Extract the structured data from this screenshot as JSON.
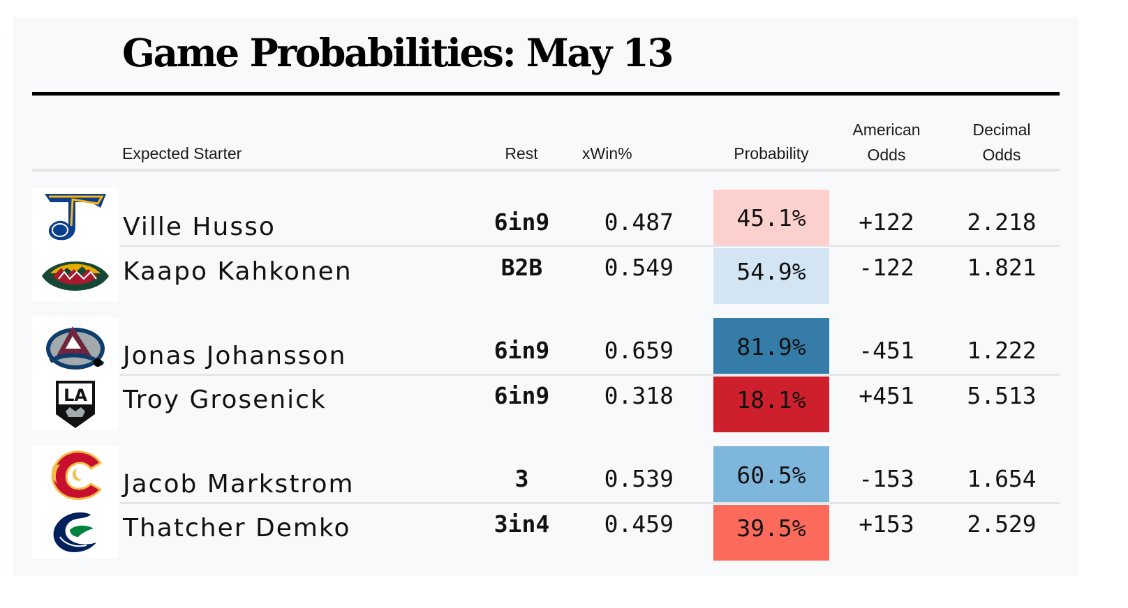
{
  "chart_data": {
    "type": "table",
    "title": "Game Probabilities: May 13",
    "columns": {
      "starter": "Expected Starter",
      "rest": "Rest",
      "xwin": "xWin%",
      "probability": "Probability",
      "american_1": "American",
      "american_2": "Odds",
      "decimal_1": "Decimal",
      "decimal_2": "Odds"
    },
    "games": [
      {
        "teams": [
          {
            "logo": "st-louis-blues-logo",
            "starter": "Ville Husso",
            "rest": "6in9",
            "xwin": "0.487",
            "probability_label": "45.1%",
            "probability": 45.1,
            "probability_color": "#fbd0cd",
            "american_odds": "+122",
            "decimal_odds": "2.218"
          },
          {
            "logo": "minnesota-wild-logo",
            "starter": "Kaapo Kahkonen",
            "rest": "B2B",
            "xwin": "0.549",
            "probability_label": "54.9%",
            "probability": 54.9,
            "probability_color": "#d3e5f3",
            "american_odds": "-122",
            "decimal_odds": "1.821"
          }
        ]
      },
      {
        "teams": [
          {
            "logo": "colorado-avalanche-logo",
            "starter": "Jonas Johansson",
            "rest": "6in9",
            "xwin": "0.659",
            "probability_label": "81.9%",
            "probability": 81.9,
            "probability_color": "#357da8",
            "american_odds": "-451",
            "decimal_odds": "1.222"
          },
          {
            "logo": "los-angeles-kings-logo",
            "starter": "Troy Grosenick",
            "rest": "6in9",
            "xwin": "0.318",
            "probability_label": "18.1%",
            "probability": 18.1,
            "probability_color": "#cd1f2c",
            "american_odds": "+451",
            "decimal_odds": "5.513"
          }
        ]
      },
      {
        "teams": [
          {
            "logo": "calgary-flames-logo",
            "starter": "Jacob Markstrom",
            "rest": "3",
            "xwin": "0.539",
            "probability_label": "60.5%",
            "probability": 60.5,
            "probability_color": "#7fb6dc",
            "american_odds": "-153",
            "decimal_odds": "1.654"
          },
          {
            "logo": "vancouver-canucks-logo",
            "starter": "Thatcher Demko",
            "rest": "3in4",
            "xwin": "0.459",
            "probability_label": "39.5%",
            "probability": 39.5,
            "probability_color": "#fb6a5a",
            "american_odds": "+153",
            "decimal_odds": "2.529"
          }
        ]
      }
    ]
  }
}
